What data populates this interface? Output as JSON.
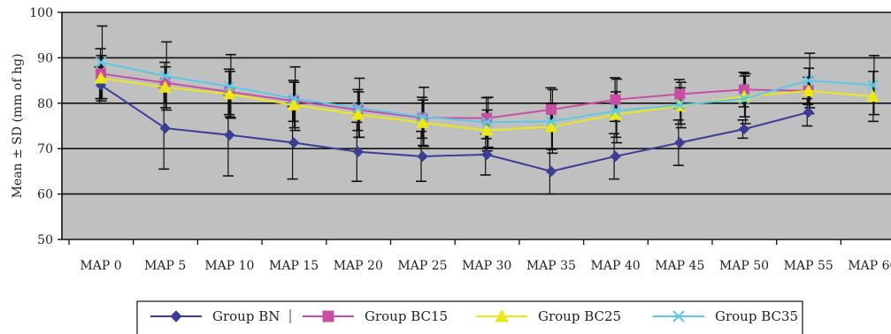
{
  "chart_data": {
    "type": "line",
    "ylabel": "Mean ± SD (mm of hg)",
    "ylim": [
      50,
      100
    ],
    "yticks": [
      50,
      60,
      70,
      80,
      90,
      100
    ],
    "grid": true,
    "legend_position": "bottom",
    "categories": [
      "MAP 0",
      "MAP 5",
      "MAP 10",
      "MAP 15",
      "MAP 20",
      "MAP 25",
      "MAP 30",
      "MAP 35",
      "MAP 40",
      "MAP 45",
      "MAP 50",
      "MAP 55",
      "MAP 60"
    ],
    "series": [
      {
        "name": "Group BN",
        "color": "#3a3f94",
        "marker": "diamond",
        "values": [
          84,
          74.5,
          73,
          71.3,
          69.3,
          68.3,
          68.7,
          65,
          68.3,
          71.3,
          74.3,
          78,
          null
        ],
        "errors": [
          4,
          9,
          9,
          8,
          6.5,
          5.5,
          4.5,
          5,
          5,
          5,
          2,
          3,
          null
        ]
      },
      {
        "name": "Group BC15",
        "color": "#c64fa3",
        "marker": "square",
        "values": [
          86.5,
          84.5,
          82.5,
          80.5,
          78.5,
          76.8,
          76.7,
          78.6,
          80.8,
          82,
          83,
          82.7,
          null
        ],
        "errors": [
          5.5,
          4.5,
          5,
          4.5,
          4.5,
          4.5,
          4.5,
          4.8,
          4.8,
          3.2,
          3.8,
          3,
          null
        ]
      },
      {
        "name": "Group BC25",
        "color": "#e8e81a",
        "marker": "triangle",
        "values": [
          85.5,
          83.5,
          82,
          79.6,
          77.5,
          75.7,
          74,
          74.8,
          77.5,
          79.4,
          81.5,
          82.7,
          81.5
        ],
        "errors": [
          5,
          4.5,
          5,
          5,
          5,
          5,
          4.5,
          5,
          5,
          4,
          4.5,
          5,
          5.5
        ]
      },
      {
        "name": "Group BC35",
        "color": "#5ec7e6",
        "marker": "x",
        "values": [
          89,
          86,
          83.7,
          81,
          79,
          77,
          75.8,
          76,
          78.3,
          79.6,
          81,
          85,
          84
        ],
        "errors": [
          8,
          7.5,
          7,
          7,
          6.5,
          6.5,
          5.5,
          7,
          7,
          5,
          5.5,
          6,
          6.5
        ]
      }
    ]
  }
}
